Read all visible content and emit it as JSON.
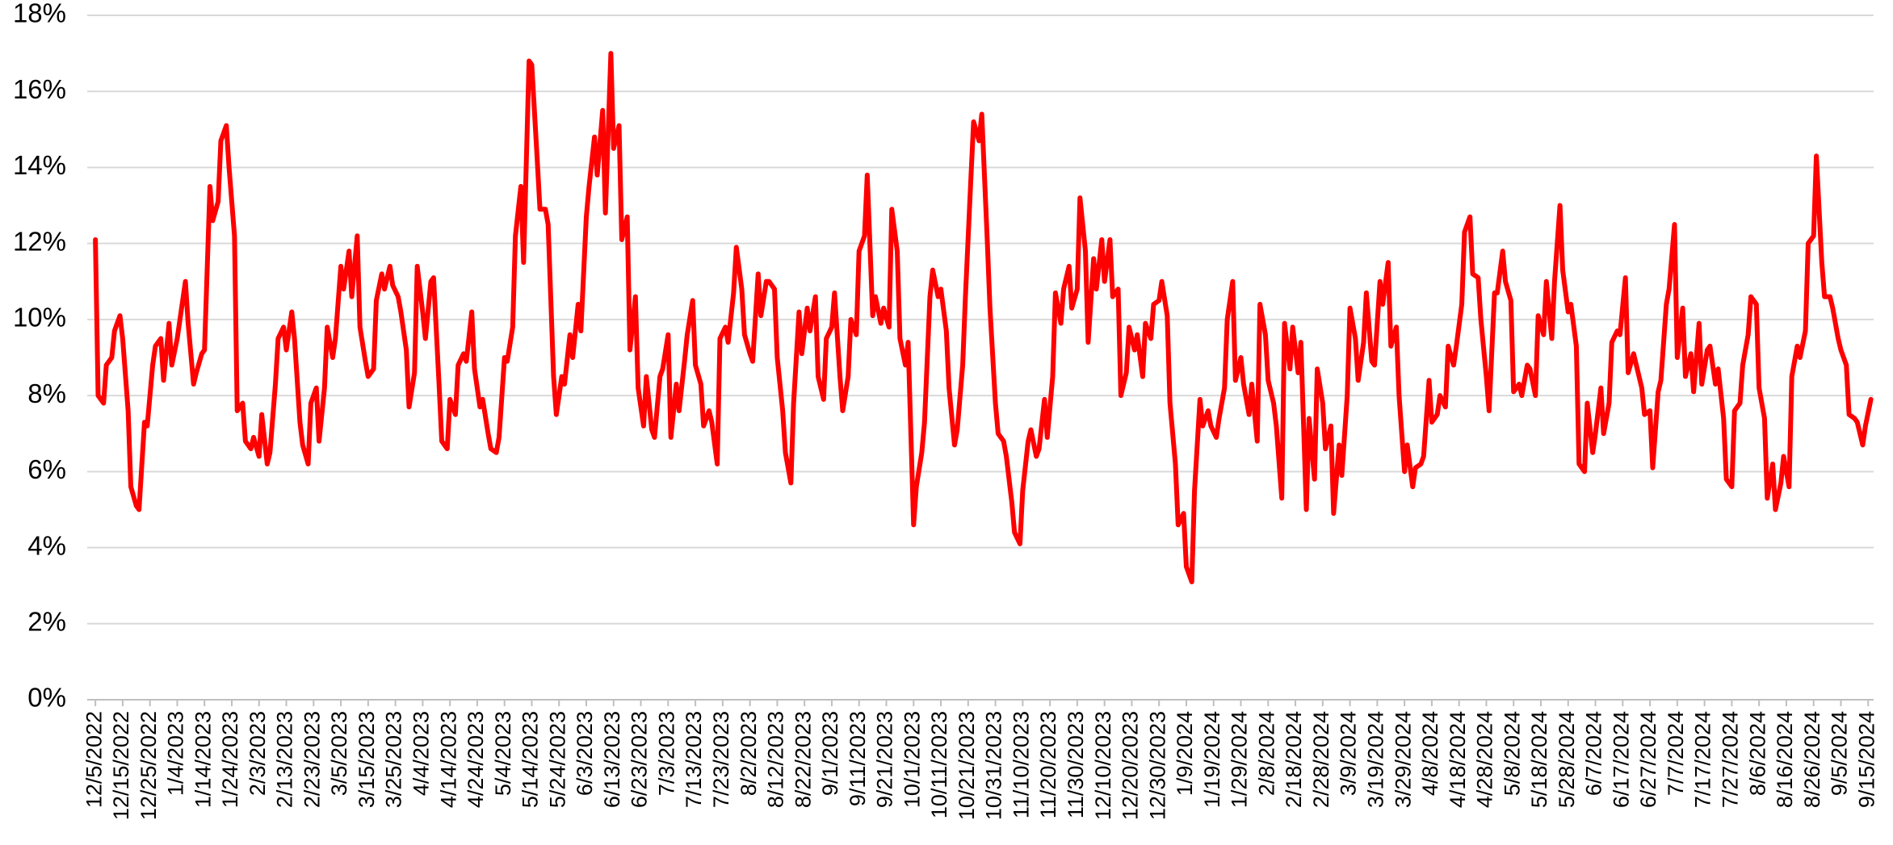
{
  "chart_data": {
    "type": "line",
    "x": [
      "12/5/2022",
      "12/6/2022",
      "12/8/2022",
      "12/9/2022",
      "12/11/2022",
      "12/12/2022",
      "12/14/2022",
      "12/15/2022",
      "12/17/2022",
      "12/18/2022",
      "12/20/2022",
      "12/21/2022",
      "12/23/2022",
      "12/24/2022",
      "12/26/2022",
      "12/27/2022",
      "12/29/2022",
      "12/30/2022",
      "1/1/2023",
      "1/2/2023",
      "1/4/2023",
      "1/5/2023",
      "1/7/2023",
      "1/8/2023",
      "1/10/2023",
      "1/11/2023",
      "1/13/2023",
      "1/14/2023",
      "1/16/2023",
      "1/17/2023",
      "1/19/2023",
      "1/20/2023",
      "1/22/2023",
      "1/23/2023",
      "1/25/2023",
      "1/26/2023",
      "1/28/2023",
      "1/29/2023",
      "1/31/2023",
      "2/1/2023",
      "2/3/2023",
      "2/4/2023",
      "2/6/2023",
      "2/7/2023",
      "2/9/2023",
      "2/10/2023",
      "2/12/2023",
      "2/13/2023",
      "2/15/2023",
      "2/16/2023",
      "2/18/2023",
      "2/19/2023",
      "2/21/2023",
      "2/22/2023",
      "2/24/2023",
      "2/25/2023",
      "2/27/2023",
      "2/28/2023",
      "3/2/2023",
      "3/3/2023",
      "3/5/2023",
      "3/6/2023",
      "3/8/2023",
      "3/9/2023",
      "3/11/2023",
      "3/12/2023",
      "3/14/2023",
      "3/15/2023",
      "3/17/2023",
      "3/18/2023",
      "3/20/2023",
      "3/21/2023",
      "3/23/2023",
      "3/24/2023",
      "3/26/2023",
      "3/27/2023",
      "3/29/2023",
      "3/30/2023",
      "4/1/2023",
      "4/2/2023",
      "4/4/2023",
      "4/5/2023",
      "4/7/2023",
      "4/8/2023",
      "4/10/2023",
      "4/11/2023",
      "4/13/2023",
      "4/14/2023",
      "4/16/2023",
      "4/17/2023",
      "4/19/2023",
      "4/20/2023",
      "4/22/2023",
      "4/23/2023",
      "4/25/2023",
      "4/26/2023",
      "4/28/2023",
      "4/29/2023",
      "5/1/2023",
      "5/2/2023",
      "5/4/2023",
      "5/5/2023",
      "5/7/2023",
      "5/8/2023",
      "5/10/2023",
      "5/11/2023",
      "5/13/2023",
      "5/14/2023",
      "5/16/2023",
      "5/17/2023",
      "5/19/2023",
      "5/20/2023",
      "5/22/2023",
      "5/23/2023",
      "5/25/2023",
      "5/26/2023",
      "5/28/2023",
      "5/29/2023",
      "5/31/2023",
      "6/1/2023",
      "6/3/2023",
      "6/4/2023",
      "6/6/2023",
      "6/7/2023",
      "6/9/2023",
      "6/10/2023",
      "6/12/2023",
      "6/13/2023",
      "6/15/2023",
      "6/16/2023",
      "6/18/2023",
      "6/19/2023",
      "6/21/2023",
      "6/22/2023",
      "6/24/2023",
      "6/25/2023",
      "6/27/2023",
      "6/28/2023",
      "6/30/2023",
      "7/1/2023",
      "7/3/2023",
      "7/4/2023",
      "7/6/2023",
      "7/7/2023",
      "7/9/2023",
      "7/10/2023",
      "7/12/2023",
      "7/13/2023",
      "7/15/2023",
      "7/16/2023",
      "7/18/2023",
      "7/19/2023",
      "7/21/2023",
      "7/22/2023",
      "7/24/2023",
      "7/25/2023",
      "7/27/2023",
      "7/28/2023",
      "7/30/2023",
      "7/31/2023",
      "8/2/2023",
      "8/3/2023",
      "8/5/2023",
      "8/6/2023",
      "8/8/2023",
      "8/9/2023",
      "8/11/2023",
      "8/12/2023",
      "8/14/2023",
      "8/15/2023",
      "8/17/2023",
      "8/18/2023",
      "8/20/2023",
      "8/21/2023",
      "8/23/2023",
      "8/24/2023",
      "8/26/2023",
      "8/27/2023",
      "8/29/2023",
      "8/30/2023",
      "9/1/2023",
      "9/2/2023",
      "9/4/2023",
      "9/5/2023",
      "9/7/2023",
      "9/8/2023",
      "9/10/2023",
      "9/11/2023",
      "9/13/2023",
      "9/14/2023",
      "9/16/2023",
      "9/17/2023",
      "9/19/2023",
      "9/20/2023",
      "9/22/2023",
      "9/23/2023",
      "9/25/2023",
      "9/26/2023",
      "9/28/2023",
      "9/29/2023",
      "10/1/2023",
      "10/2/2023",
      "10/4/2023",
      "10/5/2023",
      "10/7/2023",
      "10/8/2023",
      "10/10/2023",
      "10/11/2023",
      "10/13/2023",
      "10/14/2023",
      "10/16/2023",
      "10/17/2023",
      "10/19/2023",
      "10/20/2023",
      "10/22/2023",
      "10/23/2023",
      "10/25/2023",
      "10/26/2023",
      "10/28/2023",
      "10/29/2023",
      "10/31/2023",
      "11/1/2023",
      "11/3/2023",
      "11/4/2023",
      "11/6/2023",
      "11/7/2023",
      "11/9/2023",
      "11/10/2023",
      "11/12/2023",
      "11/13/2023",
      "11/15/2023",
      "11/16/2023",
      "11/18/2023",
      "11/19/2023",
      "11/21/2023",
      "11/22/2023",
      "11/24/2023",
      "11/25/2023",
      "11/27/2023",
      "11/28/2023",
      "11/30/2023",
      "12/1/2023",
      "12/3/2023",
      "12/4/2023",
      "12/6/2023",
      "12/7/2023",
      "12/9/2023",
      "12/10/2023",
      "12/12/2023",
      "12/13/2023",
      "12/15/2023",
      "12/16/2023",
      "12/18/2023",
      "12/19/2023",
      "12/21/2023",
      "12/22/2023",
      "12/24/2023",
      "12/25/2023",
      "12/27/2023",
      "12/28/2023",
      "12/30/2023",
      "12/31/2023",
      "1/2/2024",
      "1/3/2024",
      "1/5/2024",
      "1/6/2024",
      "1/8/2024",
      "1/9/2024",
      "1/11/2024",
      "1/12/2024",
      "1/14/2024",
      "1/15/2024",
      "1/17/2024",
      "1/18/2024",
      "1/20/2024",
      "1/21/2024",
      "1/23/2024",
      "1/24/2024",
      "1/26/2024",
      "1/27/2024",
      "1/29/2024",
      "1/30/2024",
      "2/1/2024",
      "2/2/2024",
      "2/4/2024",
      "2/5/2024",
      "2/7/2024",
      "2/8/2024",
      "2/10/2024",
      "2/11/2024",
      "2/13/2024",
      "2/14/2024",
      "2/16/2024",
      "2/17/2024",
      "2/19/2024",
      "2/20/2024",
      "2/22/2024",
      "2/23/2024",
      "2/25/2024",
      "2/26/2024",
      "2/28/2024",
      "2/29/2024",
      "3/2/2024",
      "3/3/2024",
      "3/5/2024",
      "3/6/2024",
      "3/8/2024",
      "3/9/2024",
      "3/11/2024",
      "3/12/2024",
      "3/14/2024",
      "3/15/2024",
      "3/17/2024",
      "3/18/2024",
      "3/20/2024",
      "3/21/2024",
      "3/23/2024",
      "3/24/2024",
      "3/26/2024",
      "3/27/2024",
      "3/29/2024",
      "3/30/2024",
      "4/1/2024",
      "4/2/2024",
      "4/4/2024",
      "4/5/2024",
      "4/7/2024",
      "4/8/2024",
      "4/10/2024",
      "4/11/2024",
      "4/13/2024",
      "4/14/2024",
      "4/16/2024",
      "4/17/2024",
      "4/19/2024",
      "4/20/2024",
      "4/22/2024",
      "4/23/2024",
      "4/25/2024",
      "4/26/2024",
      "4/28/2024",
      "4/29/2024",
      "5/1/2024",
      "5/2/2024",
      "5/4/2024",
      "5/5/2024",
      "5/7/2024",
      "5/8/2024",
      "5/10/2024",
      "5/11/2024",
      "5/13/2024",
      "5/14/2024",
      "5/16/2024",
      "5/17/2024",
      "5/19/2024",
      "5/20/2024",
      "5/22/2024",
      "5/23/2024",
      "5/25/2024",
      "5/26/2024",
      "5/28/2024",
      "5/29/2024",
      "5/31/2024",
      "6/1/2024",
      "6/3/2024",
      "6/4/2024",
      "6/6/2024",
      "6/7/2024",
      "6/9/2024",
      "6/10/2024",
      "6/12/2024",
      "6/13/2024",
      "6/15/2024",
      "6/16/2024",
      "6/18/2024",
      "6/19/2024",
      "6/21/2024",
      "6/22/2024",
      "6/24/2024",
      "6/25/2024",
      "6/27/2024",
      "6/28/2024",
      "6/30/2024",
      "7/1/2024",
      "7/3/2024",
      "7/4/2024",
      "7/6/2024",
      "7/7/2024",
      "7/9/2024",
      "7/10/2024",
      "7/12/2024",
      "7/13/2024",
      "7/15/2024",
      "7/16/2024",
      "7/18/2024",
      "7/19/2024",
      "7/21/2024",
      "7/22/2024",
      "7/24/2024",
      "7/25/2024",
      "7/27/2024",
      "7/28/2024",
      "7/30/2024",
      "7/31/2024",
      "8/2/2024",
      "8/3/2024",
      "8/5/2024",
      "8/6/2024",
      "8/8/2024",
      "8/9/2024",
      "8/11/2024",
      "8/12/2024",
      "8/14/2024",
      "8/15/2024",
      "8/17/2024",
      "8/18/2024",
      "8/20/2024",
      "8/21/2024",
      "8/23/2024",
      "8/24/2024",
      "8/26/2024",
      "8/27/2024",
      "8/29/2024",
      "8/30/2024",
      "9/1/2024",
      "9/2/2024",
      "9/4/2024",
      "9/5/2024",
      "9/7/2024",
      "9/8/2024",
      "9/10/2024",
      "9/11/2024",
      "9/13/2024",
      "9/14/2024",
      "9/16/2024"
    ],
    "series": [
      {
        "color": "#ff0000",
        "values": [
          12.1,
          8.0,
          7.8,
          8.8,
          9.0,
          9.7,
          10.1,
          9.5,
          7.6,
          5.6,
          5.1,
          5.0,
          7.3,
          7.2,
          8.8,
          9.3,
          9.5,
          8.4,
          9.9,
          8.8,
          9.5,
          10.0,
          11.0,
          9.9,
          8.3,
          8.6,
          9.1,
          9.2,
          13.5,
          12.6,
          13.1,
          14.7,
          15.1,
          14.0,
          12.2,
          7.6,
          7.8,
          6.8,
          6.6,
          6.9,
          6.4,
          7.5,
          6.2,
          6.5,
          8.3,
          9.5,
          9.8,
          9.2,
          10.2,
          9.5,
          7.3,
          6.7,
          6.2,
          7.8,
          8.2,
          6.8,
          8.2,
          9.8,
          9.0,
          9.5,
          11.4,
          10.8,
          11.8,
          10.6,
          12.2,
          9.8,
          8.9,
          8.5,
          8.7,
          10.5,
          11.2,
          10.8,
          11.4,
          10.9,
          10.6,
          10.2,
          9.2,
          7.7,
          8.6,
          11.4,
          10.2,
          9.5,
          11.0,
          11.1,
          8.3,
          6.8,
          6.6,
          7.9,
          7.5,
          8.8,
          9.1,
          8.9,
          10.2,
          8.7,
          7.7,
          7.9,
          7.0,
          6.6,
          6.5,
          6.9,
          9.0,
          8.9,
          9.8,
          12.2,
          13.5,
          11.5,
          16.8,
          16.7,
          14.2,
          12.9,
          12.9,
          12.5,
          8.5,
          7.5,
          8.5,
          8.3,
          9.6,
          9.0,
          10.4,
          9.7,
          12.7,
          13.5,
          14.8,
          13.8,
          15.5,
          12.8,
          17.0,
          14.5,
          15.1,
          12.1,
          12.7,
          9.2,
          10.6,
          8.2,
          7.2,
          8.5,
          7.1,
          6.9,
          8.5,
          8.7,
          9.6,
          6.9,
          8.3,
          7.6,
          8.9,
          9.6,
          10.5,
          8.8,
          8.3,
          7.2,
          7.6,
          7.3,
          6.2,
          9.5,
          9.8,
          9.4,
          10.7,
          11.9,
          10.8,
          9.6,
          9.1,
          8.9,
          11.2,
          10.1,
          11.0,
          11.0,
          10.8,
          9.0,
          7.6,
          6.5,
          5.7,
          7.8,
          10.2,
          9.1,
          10.3,
          9.7,
          10.6,
          8.5,
          7.9,
          9.5,
          9.8,
          10.7,
          8.5,
          7.6,
          8.5,
          10.0,
          9.6,
          11.8,
          12.2,
          13.8,
          10.1,
          10.6,
          9.9,
          10.3,
          9.8,
          12.9,
          11.8,
          9.5,
          8.8,
          9.4,
          4.6,
          5.6,
          6.5,
          7.3,
          10.6,
          11.3,
          10.6,
          10.8,
          9.7,
          8.2,
          6.7,
          7.1,
          8.8,
          10.6,
          13.7,
          15.2,
          14.7,
          15.4,
          12.1,
          10.3,
          7.8,
          7.0,
          6.8,
          6.4,
          5.2,
          4.4,
          4.1,
          5.5,
          6.8,
          7.1,
          6.4,
          6.6,
          7.9,
          6.9,
          8.5,
          10.7,
          9.9,
          10.8,
          11.4,
          10.3,
          10.8,
          13.2,
          11.8,
          9.4,
          11.6,
          10.8,
          12.1,
          11.0,
          12.1,
          10.6,
          10.8,
          8.0,
          8.6,
          9.8,
          9.2,
          9.6,
          8.5,
          9.9,
          9.5,
          10.4,
          10.5,
          11.0,
          10.1,
          7.8,
          6.2,
          4.6,
          4.9,
          3.5,
          3.1,
          5.5,
          7.9,
          7.2,
          7.6,
          7.2,
          6.9,
          7.4,
          8.2,
          10.0,
          11.0,
          8.4,
          9.0,
          8.3,
          7.5,
          8.3,
          6.8,
          10.4,
          9.6,
          8.4,
          7.8,
          7.2,
          5.3,
          9.9,
          8.7,
          9.8,
          8.6,
          9.4,
          5.0,
          7.4,
          5.8,
          8.7,
          7.8,
          6.6,
          7.2,
          4.9,
          6.7,
          5.9,
          8.0,
          10.3,
          9.5,
          8.4,
          9.4,
          10.7,
          8.9,
          8.8,
          11.0,
          10.4,
          11.5,
          9.3,
          9.8,
          8.0,
          6.0,
          6.7,
          5.6,
          6.1,
          6.2,
          6.4,
          8.4,
          7.3,
          7.5,
          8.0,
          7.7,
          9.3,
          8.8,
          9.3,
          10.4,
          12.3,
          12.7,
          11.2,
          11.1,
          10.0,
          8.5,
          7.6,
          10.7,
          10.7,
          11.8,
          11.0,
          10.5,
          8.1,
          8.3,
          8.0,
          8.8,
          8.7,
          8.0,
          10.1,
          9.6,
          11.0,
          9.5,
          11.0,
          13.0,
          11.3,
          10.2,
          10.4,
          9.3,
          6.2,
          6.0,
          7.8,
          6.5,
          7.0,
          8.2,
          7.0,
          7.8,
          9.4,
          9.7,
          9.6,
          11.1,
          8.6,
          9.1,
          8.8,
          8.2,
          7.5,
          7.6,
          6.1,
          8.1,
          8.4,
          10.4,
          10.8,
          12.5,
          9.0,
          10.3,
          8.5,
          9.1,
          8.1,
          9.9,
          8.3,
          9.2,
          9.3,
          8.3,
          8.7,
          7.4,
          5.8,
          5.6,
          7.6,
          7.8,
          8.8,
          9.6,
          10.6,
          10.4,
          8.2,
          7.4,
          5.3,
          6.2,
          5.0,
          5.7,
          6.4,
          5.6,
          8.5,
          9.3,
          9.0,
          9.7,
          12.0,
          12.2,
          14.3,
          11.5,
          10.6,
          10.6,
          10.3,
          9.5,
          9.2,
          8.8,
          7.5,
          7.4,
          7.3,
          6.7,
          7.2,
          7.9
        ]
      }
    ],
    "xlim": [
      "12/2/2022",
      "9/17/2024"
    ],
    "xticks": [
      "12/5/2022",
      "12/15/2022",
      "12/25/2022",
      "1/4/2023",
      "1/14/2023",
      "1/24/2023",
      "2/3/2023",
      "2/13/2023",
      "2/23/2023",
      "3/5/2023",
      "3/15/2023",
      "3/25/2023",
      "4/4/2023",
      "4/14/2023",
      "4/24/2023",
      "5/4/2023",
      "5/14/2023",
      "5/24/2023",
      "6/3/2023",
      "6/13/2023",
      "6/23/2023",
      "7/3/2023",
      "7/13/2023",
      "7/23/2023",
      "8/2/2023",
      "8/12/2023",
      "8/22/2023",
      "9/1/2023",
      "9/11/2023",
      "9/21/2023",
      "10/1/2023",
      "10/11/2023",
      "10/21/2023",
      "10/31/2023",
      "11/10/2023",
      "11/20/2023",
      "11/30/2023",
      "12/10/2023",
      "12/20/2023",
      "12/30/2023",
      "1/9/2024",
      "1/19/2024",
      "1/29/2024",
      "2/8/2024",
      "2/18/2024",
      "2/28/2024",
      "3/9/2024",
      "3/19/2024",
      "3/29/2024",
      "4/8/2024",
      "4/18/2024",
      "4/28/2024",
      "5/8/2024",
      "5/18/2024",
      "5/28/2024",
      "6/7/2024",
      "6/17/2024",
      "6/27/2024",
      "7/7/2024",
      "7/17/2024",
      "7/27/2024",
      "8/6/2024",
      "8/16/2024",
      "8/26/2024",
      "9/5/2024",
      "9/15/2024"
    ],
    "ylim": [
      0,
      18
    ],
    "yticks": [
      {
        "value": 0,
        "label": "0%"
      },
      {
        "value": 2,
        "label": "2%"
      },
      {
        "value": 4,
        "label": "4%"
      },
      {
        "value": 6,
        "label": "6%"
      },
      {
        "value": 8,
        "label": "8%"
      },
      {
        "value": 10,
        "label": "10%"
      },
      {
        "value": 12,
        "label": "12%"
      },
      {
        "value": 14,
        "label": "14%"
      },
      {
        "value": 16,
        "label": "16%"
      },
      {
        "value": 18,
        "label": "18%"
      }
    ],
    "grid": true
  }
}
